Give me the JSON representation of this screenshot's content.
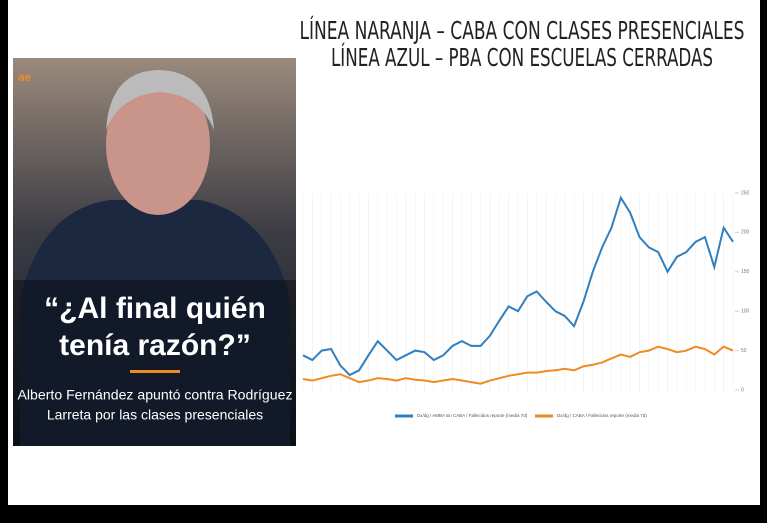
{
  "headline": [
    "LÍNEA NARANJA – CABA CON CLASES PRESENCIALES",
    "LÍNEA AZUL – PBA CON ESCUELAS CERRADAS"
  ],
  "photo": {
    "quote": [
      "“¿Al final quién",
      "tenía razón?”"
    ],
    "caption": [
      "Alberto Fernández apuntó contra Rodríguez",
      "Larreta por las clases presenciales"
    ],
    "logo": "ae"
  },
  "chart_data": {
    "type": "line",
    "categories": [
      null,
      null,
      null,
      null,
      null,
      null,
      null,
      null,
      null,
      null,
      null,
      null,
      null,
      null,
      null,
      null,
      null,
      null,
      null,
      null,
      null,
      null,
      null,
      null,
      null,
      null,
      null,
      null,
      null,
      null,
      null,
      null,
      null,
      null,
      null,
      null,
      null,
      null,
      null,
      null,
      null,
      null,
      null,
      null,
      null,
      null,
      null
    ],
    "series": [
      {
        "name": "Dx/dg / AMBA sin CABA / Fallecidos reporte (media 7d)",
        "color": "#2f7fc1",
        "values": [
          44,
          38,
          50,
          52,
          31,
          19,
          25,
          44,
          62,
          50,
          38,
          44,
          50,
          48,
          38,
          44,
          56,
          62,
          56,
          56,
          69,
          88,
          106,
          100,
          119,
          125,
          112,
          100,
          94,
          81,
          112,
          150,
          181,
          206,
          244,
          225,
          194,
          181,
          175,
          150,
          169,
          175,
          188,
          194,
          156,
          206,
          188
        ]
      },
      {
        "name": "Dx/dg / CABA / Fallecidos reporte (media 7d)",
        "color": "#f08a24",
        "values": [
          14,
          12,
          15,
          18,
          20,
          15,
          10,
          12,
          15,
          14,
          12,
          15,
          13,
          12,
          10,
          12,
          14,
          12,
          10,
          8,
          12,
          15,
          18,
          20,
          22,
          22,
          24,
          25,
          27,
          25,
          30,
          32,
          35,
          40,
          45,
          42,
          48,
          50,
          55,
          52,
          48,
          50,
          55,
          52,
          45,
          55,
          50
        ]
      }
    ],
    "ylim": [
      0,
      250
    ],
    "yticks": [
      0,
      50,
      100,
      150,
      200,
      250
    ],
    "y_axis_side": "right"
  }
}
